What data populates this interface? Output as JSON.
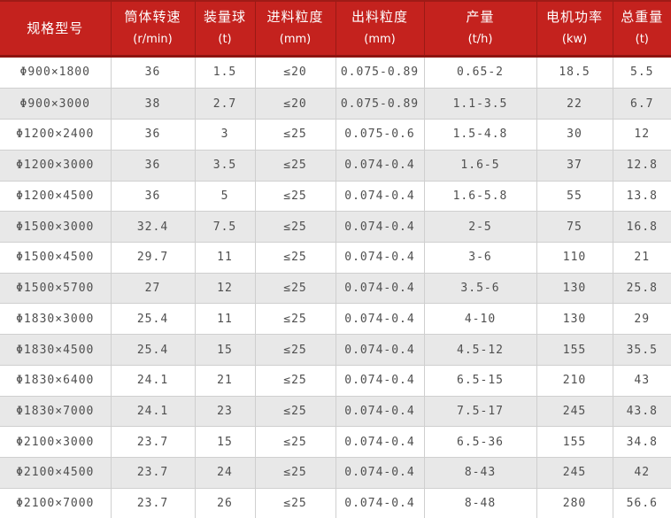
{
  "colors": {
    "header_bg": "#c4221e",
    "header_divider": "#9a1a15",
    "header_bottom_line": "#8e1410",
    "row_alt_bg": "#e8e8e8",
    "row_bg": "#ffffff",
    "grid_line": "#cfcfcf",
    "body_text": "#4f4f4f",
    "header_text": "#ffffff"
  },
  "table": {
    "columns": [
      {
        "key": "spec",
        "title": "规格型号",
        "unit": ""
      },
      {
        "key": "speed",
        "title": "筒体转速",
        "unit": "(r/min)"
      },
      {
        "key": "ball",
        "title": "装量球",
        "unit": "(t)"
      },
      {
        "key": "feed",
        "title": "进料粒度",
        "unit": "(mm)"
      },
      {
        "key": "discharge",
        "title": "出料粒度",
        "unit": "(mm)"
      },
      {
        "key": "capacity",
        "title": "产量",
        "unit": "(t/h)"
      },
      {
        "key": "power",
        "title": "电机功率",
        "unit": "(kw)"
      },
      {
        "key": "weight",
        "title": "总重量",
        "unit": "(t)"
      }
    ],
    "rows": [
      [
        "Φ900×1800",
        "36",
        "1.5",
        "≤20",
        "0.075-0.89",
        "0.65-2",
        "18.5",
        "5.5"
      ],
      [
        "Φ900×3000",
        "38",
        "2.7",
        "≤20",
        "0.075-0.89",
        "1.1-3.5",
        "22",
        "6.7"
      ],
      [
        "Φ1200×2400",
        "36",
        "3",
        "≤25",
        "0.075-0.6",
        "1.5-4.8",
        "30",
        "12"
      ],
      [
        "Φ1200×3000",
        "36",
        "3.5",
        "≤25",
        "0.074-0.4",
        "1.6-5",
        "37",
        "12.8"
      ],
      [
        "Φ1200×4500",
        "36",
        "5",
        "≤25",
        "0.074-0.4",
        "1.6-5.8",
        "55",
        "13.8"
      ],
      [
        "Φ1500×3000",
        "32.4",
        "7.5",
        "≤25",
        "0.074-0.4",
        "2-5",
        "75",
        "16.8"
      ],
      [
        "Φ1500×4500",
        "29.7",
        "11",
        "≤25",
        "0.074-0.4",
        "3-6",
        "110",
        "21"
      ],
      [
        "Φ1500×5700",
        "27",
        "12",
        "≤25",
        "0.074-0.4",
        "3.5-6",
        "130",
        "25.8"
      ],
      [
        "Φ1830×3000",
        "25.4",
        "11",
        "≤25",
        "0.074-0.4",
        "4-10",
        "130",
        "29"
      ],
      [
        "Φ1830×4500",
        "25.4",
        "15",
        "≤25",
        "0.074-0.4",
        "4.5-12",
        "155",
        "35.5"
      ],
      [
        "Φ1830×6400",
        "24.1",
        "21",
        "≤25",
        "0.074-0.4",
        "6.5-15",
        "210",
        "43"
      ],
      [
        "Φ1830×7000",
        "24.1",
        "23",
        "≤25",
        "0.074-0.4",
        "7.5-17",
        "245",
        "43.8"
      ],
      [
        "Φ2100×3000",
        "23.7",
        "15",
        "≤25",
        "0.074-0.4",
        "6.5-36",
        "155",
        "34.8"
      ],
      [
        "Φ2100×4500",
        "23.7",
        "24",
        "≤25",
        "0.074-0.4",
        "8-43",
        "245",
        "42"
      ],
      [
        "Φ2100×7000",
        "23.7",
        "26",
        "≤25",
        "0.074-0.4",
        "8-48",
        "280",
        "56.6"
      ]
    ]
  }
}
